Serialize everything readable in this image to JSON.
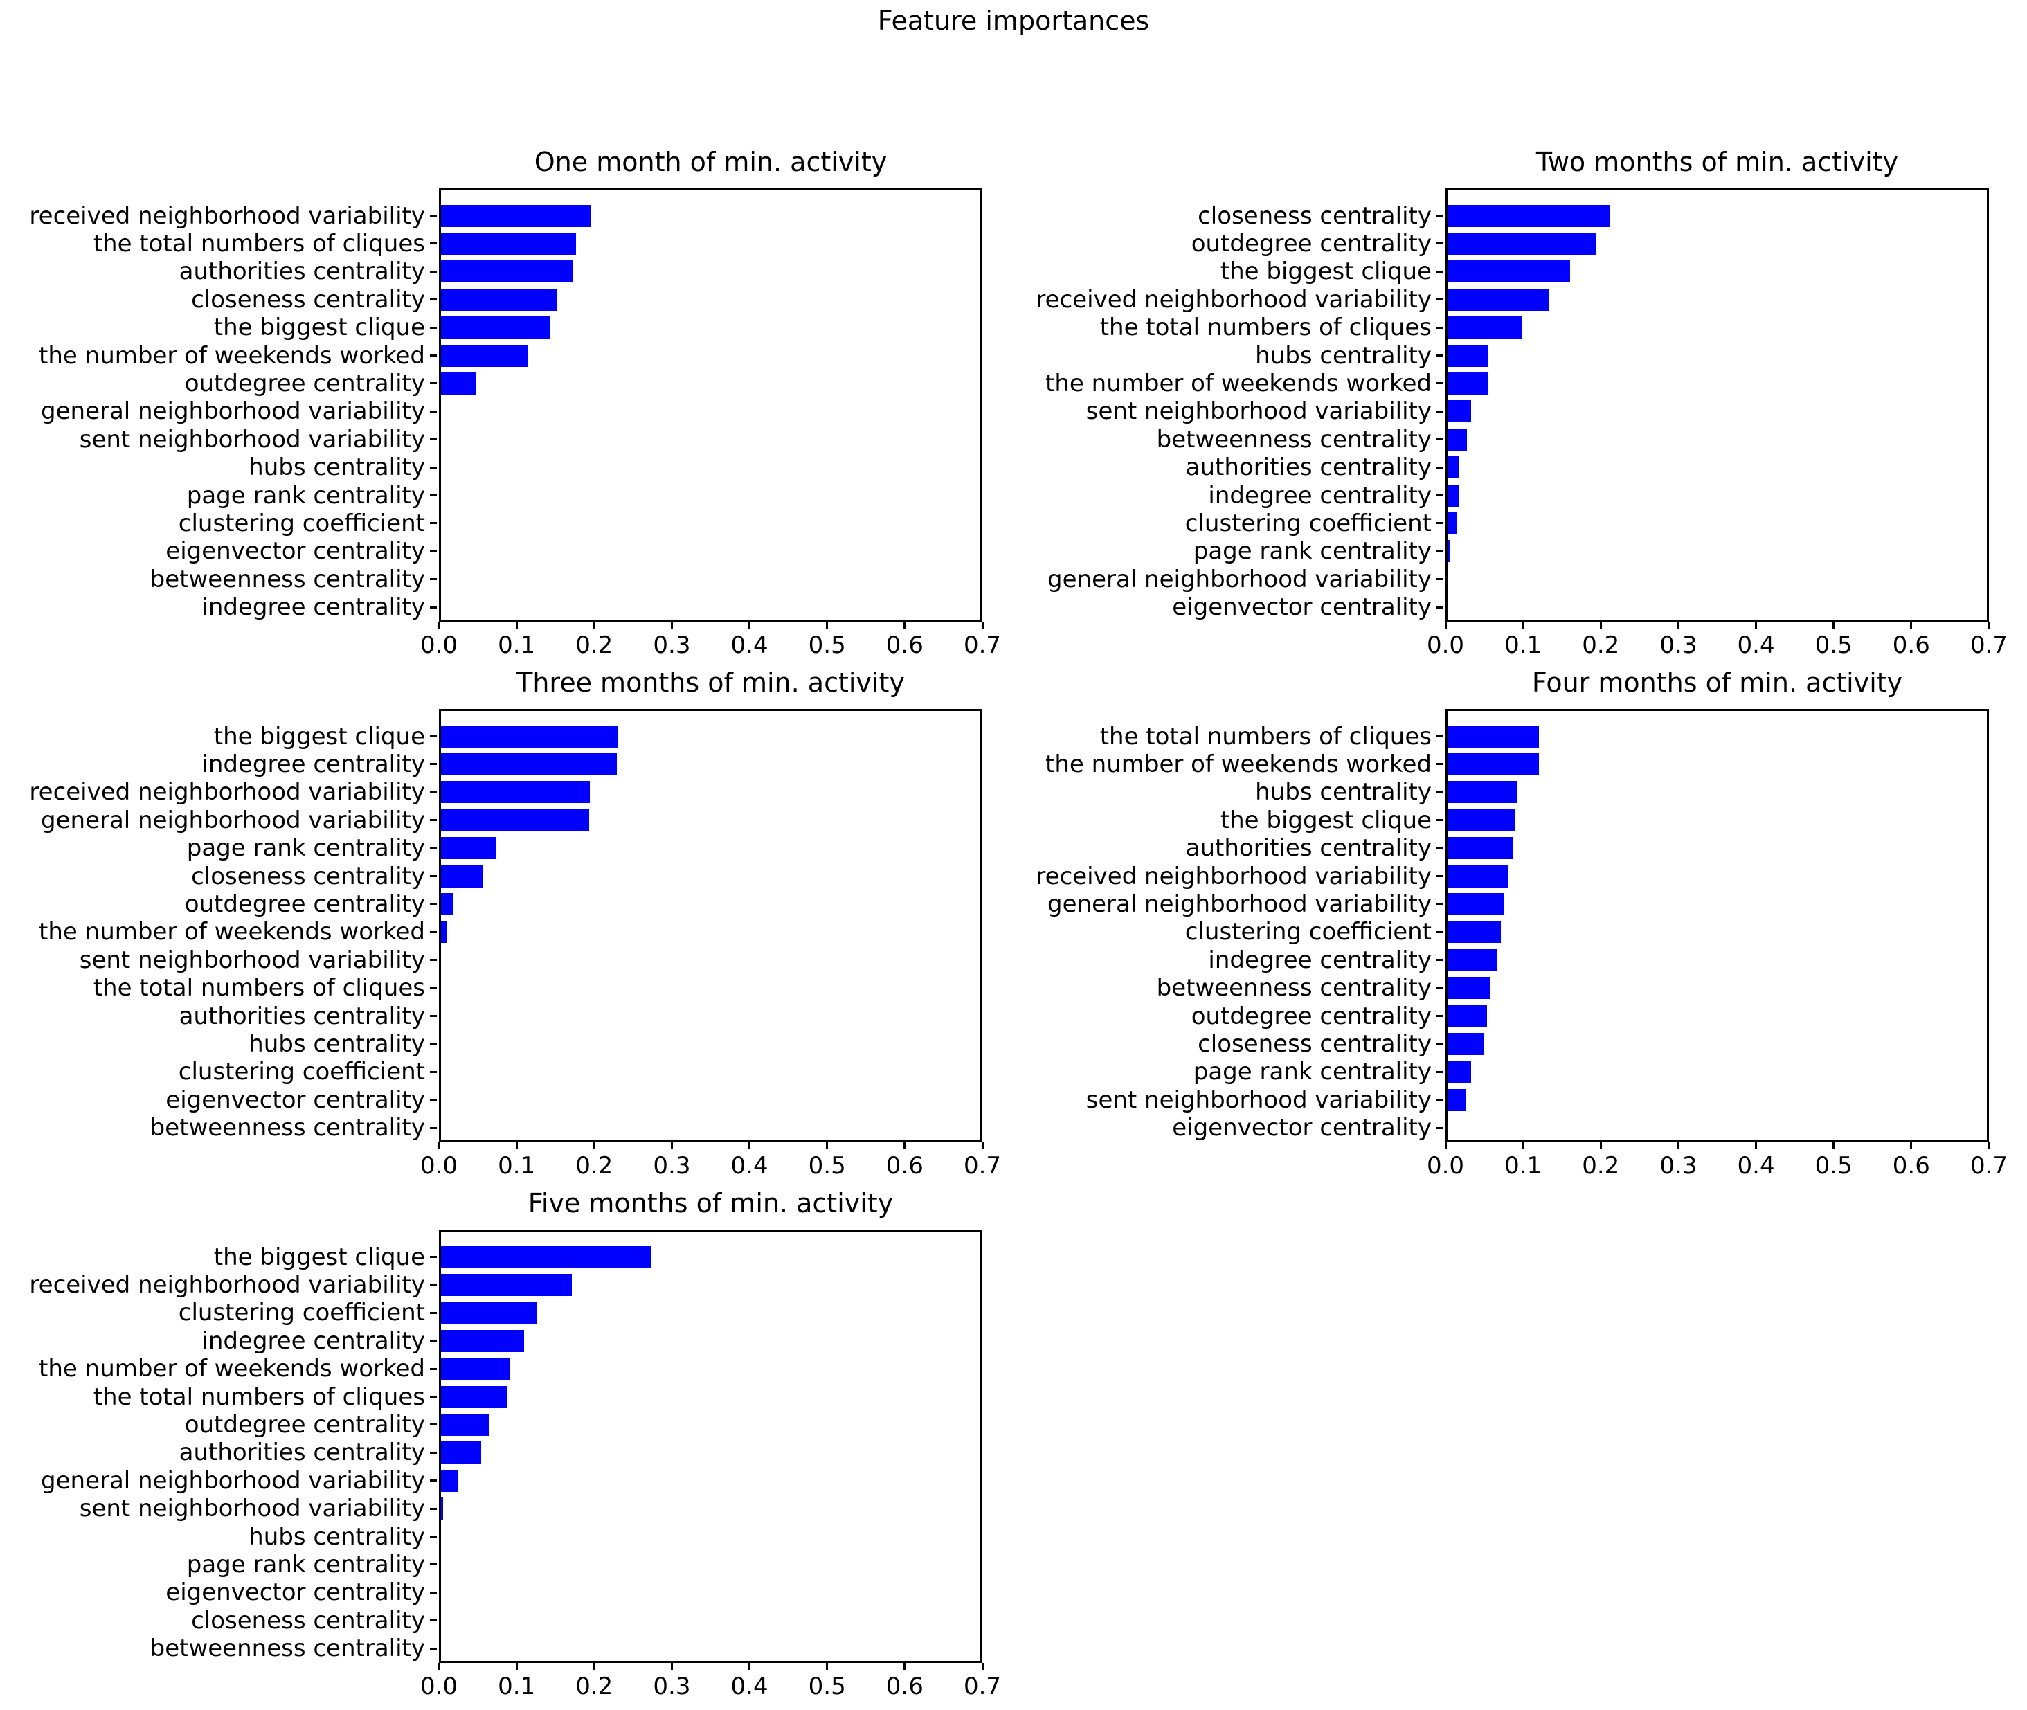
{
  "figure": {
    "title": "Feature importances",
    "bar_color": "#0000ff",
    "axis_color": "#000000",
    "background_color": "#ffffff"
  },
  "chart_data": [
    {
      "type": "bar",
      "orientation": "horizontal",
      "title": "One month of min. activity",
      "xlabel": "",
      "ylabel": "",
      "xlim": [
        0.0,
        0.7
      ],
      "xticks": [
        0.0,
        0.1,
        0.2,
        0.3,
        0.4,
        0.5,
        0.6,
        0.7
      ],
      "grid": false,
      "categories": [
        "received neighborhood variability",
        "the total numbers of cliques",
        "authorities centrality",
        "closeness centrality",
        "the biggest clique",
        "the number of weekends worked",
        "outdegree centrality",
        "general neighborhood variability",
        "sent neighborhood variability",
        "hubs centrality",
        "page rank centrality",
        "clustering coefficient",
        "eigenvector centrality",
        "betweenness centrality",
        "indegree centrality"
      ],
      "values": [
        0.195,
        0.175,
        0.172,
        0.15,
        0.141,
        0.113,
        0.046,
        0.0,
        0.0,
        0.0,
        0.0,
        0.0,
        0.0,
        0.0,
        0.0
      ]
    },
    {
      "type": "bar",
      "orientation": "horizontal",
      "title": "Two months of min. activity",
      "xlabel": "",
      "ylabel": "",
      "xlim": [
        0.0,
        0.7
      ],
      "xticks": [
        0.0,
        0.1,
        0.2,
        0.3,
        0.4,
        0.5,
        0.6,
        0.7
      ],
      "grid": false,
      "categories": [
        "closeness centrality",
        "outdegree centrality",
        "the biggest clique",
        "received neighborhood variability",
        "the total numbers of cliques",
        "hubs centrality",
        "the number of weekends worked",
        "sent neighborhood variability",
        "betweenness centrality",
        "authorities centrality",
        "indegree centrality",
        "clustering coefficient",
        "page rank centrality",
        "general neighborhood variability",
        "eigenvector centrality"
      ],
      "values": [
        0.21,
        0.193,
        0.159,
        0.131,
        0.096,
        0.053,
        0.052,
        0.031,
        0.025,
        0.014,
        0.014,
        0.013,
        0.004,
        0.0,
        0.0
      ]
    },
    {
      "type": "bar",
      "orientation": "horizontal",
      "title": "Three months of min. activity",
      "xlabel": "",
      "ylabel": "",
      "xlim": [
        0.0,
        0.7
      ],
      "xticks": [
        0.0,
        0.1,
        0.2,
        0.3,
        0.4,
        0.5,
        0.6,
        0.7
      ],
      "grid": false,
      "categories": [
        "the biggest clique",
        "indegree centrality",
        "received neighborhood variability",
        "general neighborhood variability",
        "page rank centrality",
        "closeness centrality",
        "outdegree centrality",
        "the number of weekends worked",
        "sent neighborhood variability",
        "the total numbers of cliques",
        "authorities centrality",
        "hubs centrality",
        "clustering coefficient",
        "eigenvector centrality",
        "betweenness centrality"
      ],
      "values": [
        0.23,
        0.228,
        0.193,
        0.192,
        0.071,
        0.055,
        0.016,
        0.007,
        0.0,
        0.0,
        0.0,
        0.0,
        0.0,
        0.0,
        0.0
      ]
    },
    {
      "type": "bar",
      "orientation": "horizontal",
      "title": "Four months of min. activity",
      "xlabel": "",
      "ylabel": "",
      "xlim": [
        0.0,
        0.7
      ],
      "xticks": [
        0.0,
        0.1,
        0.2,
        0.3,
        0.4,
        0.5,
        0.6,
        0.7
      ],
      "grid": false,
      "categories": [
        "the total numbers of cliques",
        "the number of weekends worked",
        "hubs centrality",
        "the biggest clique",
        "authorities centrality",
        "received neighborhood variability",
        "general neighborhood variability",
        "clustering coefficient",
        "indegree centrality",
        "betweenness centrality",
        "outdegree centrality",
        "closeness centrality",
        "page rank centrality",
        "sent neighborhood variability",
        "eigenvector centrality"
      ],
      "values": [
        0.119,
        0.119,
        0.09,
        0.088,
        0.085,
        0.078,
        0.073,
        0.069,
        0.065,
        0.055,
        0.051,
        0.047,
        0.031,
        0.023,
        0.0
      ]
    },
    {
      "type": "bar",
      "orientation": "horizontal",
      "title": "Five months of min. activity",
      "xlabel": "",
      "ylabel": "",
      "xlim": [
        0.0,
        0.7
      ],
      "xticks": [
        0.0,
        0.1,
        0.2,
        0.3,
        0.4,
        0.5,
        0.6,
        0.7
      ],
      "grid": false,
      "categories": [
        "the biggest clique",
        "received neighborhood variability",
        "clustering coefficient",
        "indegree centrality",
        "the number of weekends worked",
        "the total numbers of cliques",
        "outdegree centrality",
        "authorities centrality",
        "general neighborhood variability",
        "sent neighborhood variability",
        "hubs centrality",
        "page rank centrality",
        "eigenvector centrality",
        "closeness centrality",
        "betweenness centrality"
      ],
      "values": [
        0.272,
        0.17,
        0.124,
        0.108,
        0.09,
        0.085,
        0.063,
        0.052,
        0.022,
        0.003,
        0.0,
        0.0,
        0.0,
        0.0,
        0.0
      ]
    }
  ]
}
